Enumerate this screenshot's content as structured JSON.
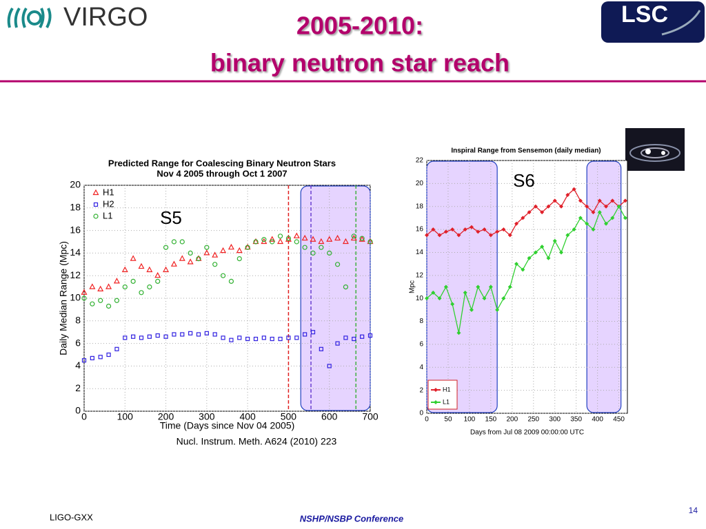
{
  "header": {
    "title": [
      "2005-2010:",
      "binary neutron star reach"
    ],
    "logo_left": "VIRGO",
    "logo_right": "LSC"
  },
  "footer": {
    "left": "LIGO-GXX",
    "center": "NSHP/NSBP Conference",
    "page": "14"
  },
  "chart_data": [
    {
      "type": "scatter",
      "title": [
        "Predicted Range for Coalescing Binary Neutron Stars",
        "Nov 4 2005 through Oct 1 2007"
      ],
      "xlabel": "Time (Days since Nov 04 2005)",
      "ylabel": "Daily Median Range (Mpc)",
      "annotation": "S5",
      "citation": "Nucl. Instrum. Meth. A624 (2010) 223",
      "xlim": [
        0,
        700
      ],
      "ylim": [
        0,
        20
      ],
      "xticks": [
        0,
        100,
        200,
        300,
        400,
        500,
        600,
        700
      ],
      "yticks": [
        0,
        2,
        4,
        6,
        8,
        10,
        12,
        14,
        16,
        18,
        20
      ],
      "grid": true,
      "legend": "upper left",
      "spans": [
        [
          530,
          700
        ]
      ],
      "vlines": [
        {
          "x": 500,
          "color": "#e02020"
        },
        {
          "x": 555,
          "color": "#6a3fd0"
        },
        {
          "x": 665,
          "color": "#40b040"
        }
      ],
      "x": [
        0,
        20,
        40,
        60,
        80,
        100,
        120,
        140,
        160,
        180,
        200,
        220,
        240,
        260,
        280,
        300,
        320,
        340,
        360,
        380,
        400,
        420,
        440,
        460,
        480,
        500,
        520,
        540,
        560,
        580,
        600,
        620,
        640,
        660,
        680,
        700
      ],
      "series": [
        {
          "name": "H1",
          "color": "#f02020",
          "marker": "triangle",
          "values": [
            10.5,
            11,
            10.8,
            11,
            11.5,
            12.5,
            13.5,
            12.8,
            12.5,
            12,
            12.5,
            13,
            13.5,
            13.2,
            13.5,
            14,
            13.8,
            14.2,
            14.5,
            14.2,
            14.5,
            15,
            15,
            15.2,
            15,
            15.2,
            15.5,
            15.3,
            15.2,
            15,
            15.2,
            15.3,
            15,
            15.3,
            15.2,
            15
          ]
        },
        {
          "name": "H2",
          "color": "#3020e0",
          "marker": "square",
          "values": [
            4.5,
            4.7,
            4.8,
            5,
            5.5,
            6.5,
            6.6,
            6.5,
            6.6,
            6.7,
            6.6,
            6.8,
            6.8,
            6.9,
            6.8,
            6.9,
            6.8,
            6.5,
            6.3,
            6.5,
            6.4,
            6.4,
            6.5,
            6.4,
            6.4,
            6.5,
            6.5,
            6.8,
            7,
            5.5,
            4,
            6,
            6.5,
            6.4,
            6.6,
            6.7
          ]
        },
        {
          "name": "L1",
          "color": "#30b030",
          "marker": "circle",
          "values": [
            10,
            9.5,
            9.8,
            9.3,
            9.8,
            11,
            11.5,
            10.5,
            11,
            11.5,
            14.5,
            15,
            15,
            14,
            13.5,
            14.5,
            13,
            12,
            11.5,
            13.5,
            14.5,
            15,
            15.2,
            15,
            15.5,
            15.3,
            15,
            14.5,
            14,
            14.5,
            14,
            13,
            11,
            15.5,
            15.3,
            15
          ]
        }
      ]
    },
    {
      "type": "line",
      "title": [
        "Inspiral Range from Sensemon (daily median)"
      ],
      "xlabel": "Days from Jul 08 2009 00:00:00 UTC",
      "ylabel": "Mpc",
      "annotation": "S6",
      "xlim": [
        0,
        470
      ],
      "ylim": [
        0,
        22
      ],
      "xticks": [
        0,
        50,
        100,
        150,
        200,
        250,
        300,
        350,
        400,
        450
      ],
      "yticks": [
        0,
        2,
        4,
        6,
        8,
        10,
        12,
        14,
        16,
        18,
        20,
        22
      ],
      "grid": true,
      "legend": "lower left",
      "spans": [
        [
          0,
          165
        ],
        [
          375,
          455
        ]
      ],
      "x": [
        0,
        15,
        30,
        45,
        60,
        75,
        90,
        105,
        120,
        135,
        150,
        165,
        180,
        195,
        210,
        225,
        240,
        255,
        270,
        285,
        300,
        315,
        330,
        345,
        360,
        375,
        390,
        405,
        420,
        435,
        450,
        465
      ],
      "series": [
        {
          "name": "H1",
          "color": "#e0202a",
          "values": [
            15.5,
            16,
            15.5,
            15.8,
            16,
            15.5,
            16,
            16.2,
            15.8,
            16,
            15.5,
            15.8,
            16,
            15.5,
            16.5,
            17,
            17.5,
            18,
            17.5,
            18,
            18.5,
            18,
            19,
            19.5,
            18.5,
            18,
            17.5,
            18.5,
            18,
            18.5,
            18,
            18.5
          ]
        },
        {
          "name": "L1",
          "color": "#30d030",
          "values": [
            10,
            10.5,
            10,
            11,
            9.5,
            7,
            10.5,
            9,
            11,
            10,
            11,
            9,
            10,
            11,
            13,
            12.5,
            13.5,
            14,
            14.5,
            13.5,
            15,
            14,
            15.5,
            16,
            17,
            16.5,
            16,
            17.5,
            16.5,
            17,
            18,
            17
          ]
        }
      ]
    }
  ]
}
